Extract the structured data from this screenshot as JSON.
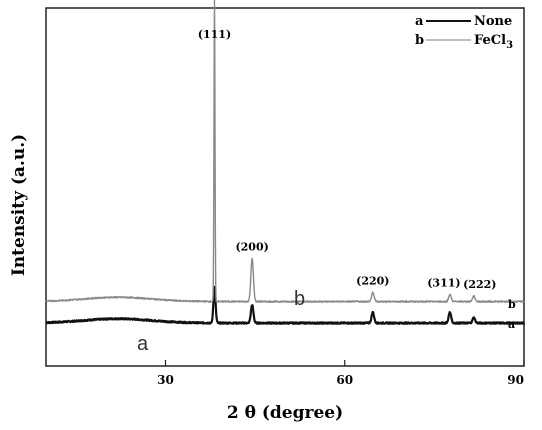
{
  "chart_data": {
    "type": "line",
    "xlabel": "2 θ (degree)",
    "ylabel": "Intensity (a.u.)",
    "xlim": [
      10,
      90
    ],
    "xticks": [
      30,
      60,
      90
    ],
    "yaxis_ticks_labeled": false,
    "grid": false,
    "legend_placement": "top-right",
    "legend": [
      {
        "key": "a",
        "name": "None",
        "sub": ""
      },
      {
        "key": "b",
        "name": "FeCl",
        "sub": "3"
      }
    ],
    "peak_labels": [
      {
        "text": "(111)",
        "x": 38.2
      },
      {
        "text": "(200)",
        "x": 44.5
      },
      {
        "text": "(220)",
        "x": 64.7
      },
      {
        "text": "(311)",
        "x": 77.6
      },
      {
        "text": "(222)",
        "x": 81.6
      }
    ],
    "series": [
      {
        "key": "a",
        "color": "#111111",
        "baseline": 0.12,
        "peaks": [
          {
            "x": 38.2,
            "height": 0.1,
            "width": 0.25
          },
          {
            "x": 44.5,
            "height": 0.05,
            "width": 0.3
          },
          {
            "x": 64.7,
            "height": 0.03,
            "width": 0.3
          },
          {
            "x": 77.6,
            "height": 0.03,
            "width": 0.3
          },
          {
            "x": 81.6,
            "height": 0.015,
            "width": 0.3
          }
        ],
        "inline_label": "a",
        "end_label": "a"
      },
      {
        "key": "b",
        "color": "#8a8a8a",
        "baseline": 0.18,
        "peaks": [
          {
            "x": 38.2,
            "height": 0.85,
            "width": 0.12
          },
          {
            "x": 44.5,
            "height": 0.12,
            "width": 0.3
          },
          {
            "x": 64.7,
            "height": 0.025,
            "width": 0.3
          },
          {
            "x": 77.6,
            "height": 0.02,
            "width": 0.3
          },
          {
            "x": 81.6,
            "height": 0.015,
            "width": 0.3
          }
        ],
        "inline_label": "b",
        "end_label": "b"
      }
    ]
  }
}
